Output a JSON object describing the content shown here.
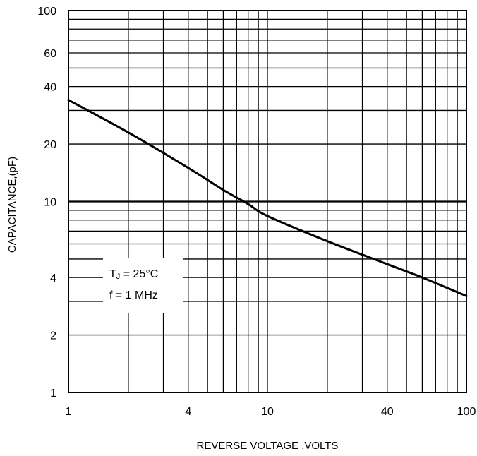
{
  "chart_data": {
    "type": "line",
    "title": "",
    "xlabel": "REVERSE VOLTAGE ,VOLTS",
    "ylabel": "CAPACITANCE,(pF)",
    "xscale": "log",
    "yscale": "log",
    "xlim": [
      1,
      100
    ],
    "ylim": [
      1,
      100
    ],
    "grid": true,
    "legend": "none",
    "x_tick_labels": [
      {
        "value": 1,
        "label": "1"
      },
      {
        "value": 4,
        "label": "4"
      },
      {
        "value": 10,
        "label": "10"
      },
      {
        "value": 40,
        "label": "40"
      },
      {
        "value": 100,
        "label": "100"
      }
    ],
    "y_tick_labels": [
      {
        "value": 1,
        "label": "1"
      },
      {
        "value": 2,
        "label": "2"
      },
      {
        "value": 4,
        "label": "4"
      },
      {
        "value": 10,
        "label": "10"
      },
      {
        "value": 20,
        "label": "20"
      },
      {
        "value": 40,
        "label": "40"
      },
      {
        "value": 60,
        "label": "60"
      },
      {
        "value": 100,
        "label": "100"
      }
    ],
    "x_gridlines": [
      1,
      2,
      3,
      4,
      5,
      6,
      7,
      8,
      9,
      10,
      20,
      30,
      40,
      50,
      60,
      70,
      80,
      90,
      100
    ],
    "y_gridlines": [
      1,
      2,
      3,
      4,
      5,
      6,
      7,
      8,
      9,
      10,
      20,
      30,
      40,
      50,
      60,
      70,
      80,
      90,
      100
    ],
    "series": [
      {
        "color": "#000000",
        "x": [
          1,
          2,
          4,
          6,
          8,
          10,
          20,
          40,
          60,
          100
        ],
        "y": [
          34,
          23,
          15,
          11.5,
          9.7,
          8.4,
          6.2,
          4.7,
          4.0,
          3.2
        ]
      }
    ],
    "annotations": [
      {
        "text_prefix": "T",
        "text_sub": "J",
        "text_suffix": " = 25°C",
        "anchor": "lower-left"
      },
      {
        "text": "f = 1 MHz",
        "anchor": "lower-left"
      }
    ]
  }
}
